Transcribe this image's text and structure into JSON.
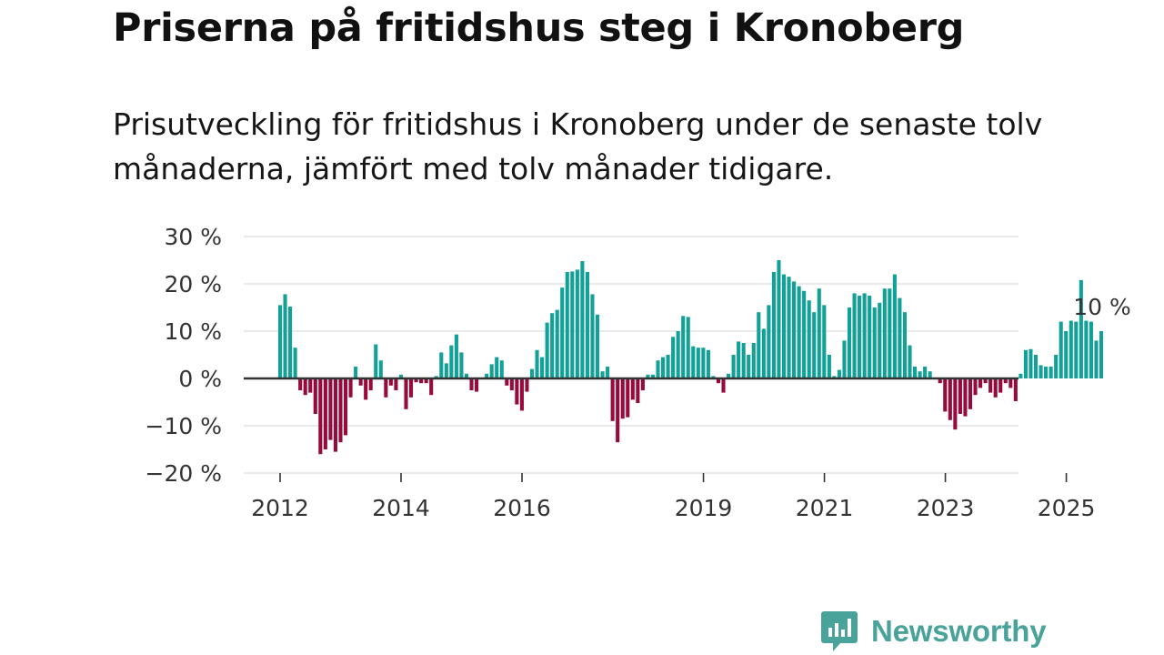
{
  "title": "Priserna på fritidshus steg i Kronoberg",
  "subtitle": "Prisutveckling för fritidshus i Kronoberg under de senaste tolv månaderna, jämfört med tolv månader tidigare.",
  "brand": {
    "name": "Newsworthy",
    "color": "#4aa39a"
  },
  "colors": {
    "positive": "#12a197",
    "negative": "#960a3c",
    "grid": "#dddddd",
    "zero": "#333333"
  },
  "chart_data": {
    "type": "bar",
    "title": "Priserna på fritidshus steg i Kronoberg",
    "xlabel": "",
    "ylabel": "",
    "ylim": [
      -20,
      30
    ],
    "y_ticks": [
      30,
      20,
      10,
      0,
      -10,
      -20
    ],
    "y_tick_labels": [
      "30 %",
      "20 %",
      "10 %",
      "0 %",
      "−10 %",
      "−20 %"
    ],
    "x_ticks": [
      {
        "label": "2012",
        "year": 2012
      },
      {
        "label": "2014",
        "year": 2014
      },
      {
        "label": "2016",
        "year": 2016
      },
      {
        "label": "2019",
        "year": 2019
      },
      {
        "label": "2021",
        "year": 2021
      },
      {
        "label": "2023",
        "year": 2023
      },
      {
        "label": "2025",
        "year": 2025
      }
    ],
    "x_start": 2012.0,
    "step_years": 0.0833,
    "annotation": {
      "text": "10 %",
      "value": 10
    },
    "values": [
      15.5,
      17.8,
      15.2,
      6.5,
      -2.5,
      -3.5,
      -3.0,
      -7.5,
      -16.0,
      -15.0,
      -13.0,
      -15.5,
      -13.5,
      -12.0,
      -4.0,
      2.5,
      -1.5,
      -4.5,
      -2.5,
      7.2,
      3.8,
      -4.0,
      -1.5,
      -2.5,
      0.8,
      -6.5,
      -4.0,
      -0.8,
      -1.0,
      -1.0,
      -3.5,
      0.5,
      5.5,
      3.2,
      7.0,
      9.3,
      5.5,
      1.0,
      -2.5,
      -2.8,
      0.2,
      1.0,
      3.0,
      4.5,
      3.8,
      -1.5,
      -2.5,
      -5.5,
      -6.8,
      -2.8,
      2.0,
      6.0,
      4.5,
      11.8,
      13.8,
      14.5,
      19.2,
      22.5,
      22.6,
      23.0,
      24.8,
      22.5,
      17.8,
      13.5,
      1.5,
      2.5,
      -9.0,
      -13.5,
      -8.5,
      -8.2,
      -4.5,
      -5.2,
      -2.5,
      0.8,
      0.8,
      3.8,
      4.5,
      5.0,
      8.8,
      10.0,
      13.2,
      13.0,
      6.8,
      6.5,
      6.5,
      6.0,
      0.5,
      -1.0,
      -3.0,
      1.0,
      5.0,
      7.8,
      7.5,
      5.0,
      7.5,
      14.0,
      10.5,
      15.5,
      22.5,
      25.0,
      22.0,
      21.5,
      20.5,
      19.5,
      18.5,
      16.5,
      14.0,
      19.0,
      15.5,
      5.0,
      0.5,
      1.8,
      8.0,
      15.0,
      18.0,
      17.5,
      18.0,
      17.5,
      15.0,
      16.0,
      19.0,
      19.0,
      22.0,
      17.0,
      14.0,
      7.0,
      2.5,
      1.5,
      2.5,
      1.5,
      0.0,
      -1.0,
      -7.0,
      -8.8,
      -10.8,
      -7.5,
      -8.0,
      -6.5,
      -3.5,
      -2.0,
      -1.0,
      -3.0,
      -4.0,
      -3.0,
      -1.0,
      -2.0,
      -4.8,
      1.0,
      6.0,
      6.2,
      5.0,
      2.8,
      2.5,
      2.5,
      5.0,
      12.0,
      10.0,
      12.2,
      12.0,
      20.8,
      12.2,
      12.0,
      8.0,
      10.0
    ]
  }
}
